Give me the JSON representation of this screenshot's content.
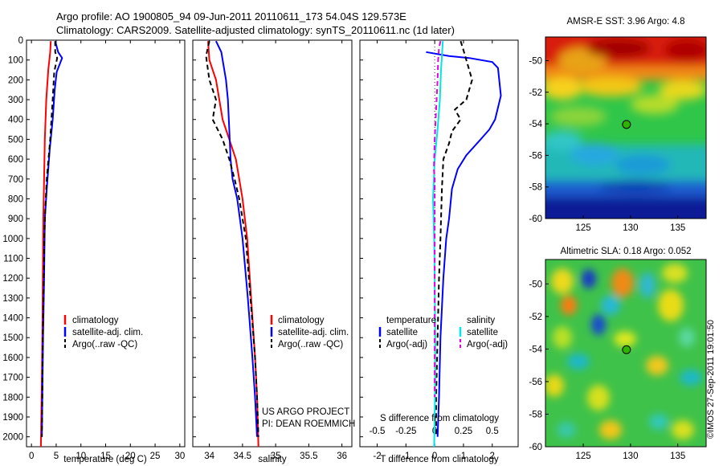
{
  "header": {
    "line1": "Argo profile: AO 1900805_94 09-Jun-2011 20110611_173 54.04S 129.573E",
    "line2": "Climatology: CARS2009. Satellite-adjusted climatology: synTS_20110611.nc (1d later)"
  },
  "credits": {
    "project": "US ARGO PROJECT",
    "pi": "PI: DEAN ROEMMICH",
    "stamp": "©IMOS 27-Sep-2011 19:01:50"
  },
  "colors": {
    "climatology": "#ff0000",
    "satellite": "#0000ff",
    "argo": "#000000",
    "satellite_salinity": "#00e5e5",
    "argo_salinity": "#e600e6",
    "marker": "#2db300"
  },
  "chart_data": [
    {
      "id": "temperature",
      "type": "line",
      "xlabel": "temperature (deg C)",
      "ylabel": "",
      "xlim": [
        -1,
        31
      ],
      "ylim": [
        2050,
        0
      ],
      "xticks": [
        0,
        5,
        10,
        15,
        20,
        25,
        30
      ],
      "yticks": [
        0,
        100,
        200,
        300,
        400,
        500,
        600,
        700,
        800,
        900,
        1000,
        1100,
        1200,
        1300,
        1400,
        1500,
        1600,
        1700,
        1800,
        1900,
        2000
      ],
      "legend": [
        "climatology",
        "satellite-adj. clim.",
        "Argo(..raw -QC)"
      ],
      "legend_position": "lower-center",
      "series": [
        {
          "name": "climatology",
          "color": "red",
          "style": "solid",
          "points": [
            [
              3.9,
              5
            ],
            [
              3.8,
              60
            ],
            [
              3.4,
              150
            ],
            [
              3.0,
              300
            ],
            [
              2.7,
              500
            ],
            [
              2.55,
              700
            ],
            [
              2.4,
              900
            ],
            [
              2.3,
              1200
            ],
            [
              2.2,
              1500
            ],
            [
              2.05,
              1800
            ],
            [
              1.9,
              2050
            ]
          ]
        },
        {
          "name": "satellite-adj. clim.",
          "color": "blue",
          "style": "solid",
          "points": [
            [
              4.8,
              5
            ],
            [
              5.4,
              60
            ],
            [
              6.2,
              90
            ],
            [
              5.1,
              160
            ],
            [
              4.7,
              250
            ],
            [
              4.3,
              400
            ],
            [
              3.7,
              550
            ],
            [
              3.1,
              750
            ],
            [
              2.7,
              900
            ],
            [
              2.55,
              1200
            ],
            [
              2.35,
              1500
            ],
            [
              2.2,
              1800
            ],
            [
              2.1,
              2000
            ]
          ]
        },
        {
          "name": "Argo(..raw -QC)",
          "color": "black",
          "style": "dashed",
          "points": [
            [
              4.8,
              5
            ],
            [
              4.8,
              60
            ],
            [
              5.2,
              90
            ],
            [
              4.6,
              160
            ],
            [
              4.3,
              300
            ],
            [
              3.8,
              500
            ],
            [
              3.1,
              700
            ],
            [
              2.8,
              850
            ],
            [
              2.6,
              1000
            ],
            [
              2.5,
              1200
            ],
            [
              2.3,
              1500
            ],
            [
              2.2,
              1800
            ],
            [
              2.1,
              2000
            ]
          ]
        }
      ]
    },
    {
      "id": "salinity",
      "type": "line",
      "xlabel": "salinity",
      "ylabel": "",
      "xlim": [
        33.75,
        36.15
      ],
      "ylim": [
        2050,
        0
      ],
      "xticks": [
        34,
        34.5,
        35,
        35.5,
        36
      ],
      "legend": [
        "climatology",
        "satellite-adj. clim.",
        "Argo(..raw -QC)"
      ],
      "legend_position": "lower-center",
      "series": [
        {
          "name": "climatology",
          "color": "red",
          "style": "solid",
          "points": [
            [
              33.98,
              5
            ],
            [
              34.0,
              100
            ],
            [
              34.1,
              200
            ],
            [
              34.15,
              300
            ],
            [
              34.2,
              400
            ],
            [
              34.3,
              500
            ],
            [
              34.4,
              600
            ],
            [
              34.45,
              700
            ],
            [
              34.5,
              800
            ],
            [
              34.57,
              1000
            ],
            [
              34.63,
              1300
            ],
            [
              34.69,
              1600
            ],
            [
              34.72,
              1800
            ],
            [
              34.74,
              2050
            ]
          ]
        },
        {
          "name": "satellite-adj. clim.",
          "color": "blue",
          "style": "solid",
          "points": [
            [
              34.1,
              5
            ],
            [
              34.18,
              60
            ],
            [
              34.25,
              200
            ],
            [
              34.28,
              300
            ],
            [
              34.3,
              450
            ],
            [
              34.32,
              600
            ],
            [
              34.35,
              700
            ],
            [
              34.42,
              800
            ],
            [
              34.5,
              1000
            ],
            [
              34.58,
              1300
            ],
            [
              34.65,
              1600
            ],
            [
              34.69,
              1800
            ],
            [
              34.72,
              2000
            ]
          ]
        },
        {
          "name": "Argo(..raw -QC)",
          "color": "black",
          "style": "dashed",
          "points": [
            [
              34.0,
              5
            ],
            [
              33.95,
              80
            ],
            [
              34.0,
              200
            ],
            [
              34.1,
              300
            ],
            [
              34.05,
              400
            ],
            [
              34.2,
              500
            ],
            [
              34.3,
              600
            ],
            [
              34.38,
              700
            ],
            [
              34.45,
              800
            ],
            [
              34.55,
              1000
            ],
            [
              34.62,
              1300
            ],
            [
              34.69,
              1600
            ],
            [
              34.72,
              1800
            ],
            [
              34.74,
              2000
            ]
          ]
        }
      ]
    },
    {
      "id": "difference",
      "type": "line",
      "xlabel": "T difference from climatology",
      "x2label": "S difference from climatology",
      "ylabel": "",
      "xlim": [
        -2.6,
        2.9
      ],
      "ylim": [
        2050,
        0
      ],
      "xticks": [
        -2,
        -1,
        0,
        1,
        2
      ],
      "x2ticks": [
        "-0.5",
        "-0.25",
        "0",
        "0.25",
        "0.5"
      ],
      "legend_groups": [
        {
          "title": "temperature",
          "entries": [
            "satellite",
            "Argo(-adj)"
          ]
        },
        {
          "title": "salinity",
          "entries": [
            "satellite",
            "Argo(-adj)"
          ]
        }
      ],
      "legend_position": "lower-center",
      "series": [
        {
          "name": "temperature satellite",
          "color": "blue",
          "style": "solid",
          "points": [
            [
              -0.3,
              60
            ],
            [
              0.5,
              80
            ],
            [
              1.2,
              90
            ],
            [
              2.0,
              110
            ],
            [
              2.2,
              140
            ],
            [
              2.3,
              280
            ],
            [
              2.1,
              400
            ],
            [
              1.9,
              450
            ],
            [
              1.6,
              500
            ],
            [
              1.1,
              580
            ],
            [
              0.8,
              650
            ],
            [
              0.6,
              750
            ],
            [
              0.5,
              900
            ],
            [
              0.4,
              1000
            ],
            [
              0.3,
              1200
            ],
            [
              0.2,
              1500
            ],
            [
              0.15,
              1800
            ],
            [
              0.1,
              2000
            ]
          ]
        },
        {
          "name": "temperature Argo(-adj)",
          "color": "black",
          "style": "dashed",
          "points": [
            [
              0.9,
              5
            ],
            [
              1.0,
              50
            ],
            [
              1.1,
              100
            ],
            [
              1.3,
              200
            ],
            [
              1.1,
              300
            ],
            [
              0.7,
              350
            ],
            [
              0.9,
              400
            ],
            [
              0.6,
              460
            ],
            [
              0.5,
              520
            ],
            [
              0.3,
              600
            ],
            [
              0.25,
              750
            ],
            [
              0.2,
              1000
            ],
            [
              0.15,
              1200
            ],
            [
              0.1,
              1500
            ],
            [
              0.05,
              1800
            ],
            [
              0.05,
              2000
            ]
          ]
        },
        {
          "name": "salinity satellite",
          "color": "cyan",
          "style": "solid",
          "points": [
            [
              0.28,
              5
            ],
            [
              0.25,
              80
            ],
            [
              0.22,
              150
            ],
            [
              0.18,
              300
            ],
            [
              0.1,
              450
            ],
            [
              0.0,
              600
            ],
            [
              -0.03,
              700
            ],
            [
              -0.06,
              800
            ],
            [
              -0.04,
              900
            ],
            [
              -0.02,
              1000
            ],
            [
              0.0,
              1200
            ],
            [
              0.02,
              1500
            ],
            [
              0.02,
              1700
            ],
            [
              0.0,
              1900
            ],
            [
              -0.02,
              2050
            ]
          ]
        },
        {
          "name": "salinity Argo(-adj)",
          "color": "magenta",
          "style": "dashed",
          "points": [
            [
              0.2,
              5
            ],
            [
              0.15,
              40
            ],
            [
              0.12,
              100
            ],
            [
              0.1,
              200
            ],
            [
              0.05,
              350
            ],
            [
              0.0,
              500
            ],
            [
              -0.03,
              650
            ],
            [
              0.0,
              700
            ],
            [
              0.0,
              900
            ],
            [
              0.0,
              1200
            ],
            [
              0.0,
              1500
            ],
            [
              0.0,
              1800
            ]
          ]
        }
      ]
    },
    {
      "id": "sst-map",
      "type": "heatmap",
      "title": "AMSR-E SST: 3.96 Argo: 4.8",
      "xlim": [
        121,
        138
      ],
      "ylim": [
        -60,
        -48.5
      ],
      "xticks": [
        125,
        130,
        135
      ],
      "yticks": [
        -50,
        -52,
        -54,
        -56,
        -58,
        -60
      ],
      "float": {
        "lon": 129.573,
        "lat": -54.04
      }
    },
    {
      "id": "sla-map",
      "type": "heatmap",
      "title": "Altimetric SLA: 0.18 Argo: 0.052",
      "xlim": [
        121,
        138
      ],
      "ylim": [
        -60,
        -48.5
      ],
      "xticks": [
        125,
        130,
        135
      ],
      "yticks": [
        -50,
        -52,
        -54,
        -56,
        -58,
        -60
      ],
      "float": {
        "lon": 129.573,
        "lat": -54.04
      }
    }
  ]
}
